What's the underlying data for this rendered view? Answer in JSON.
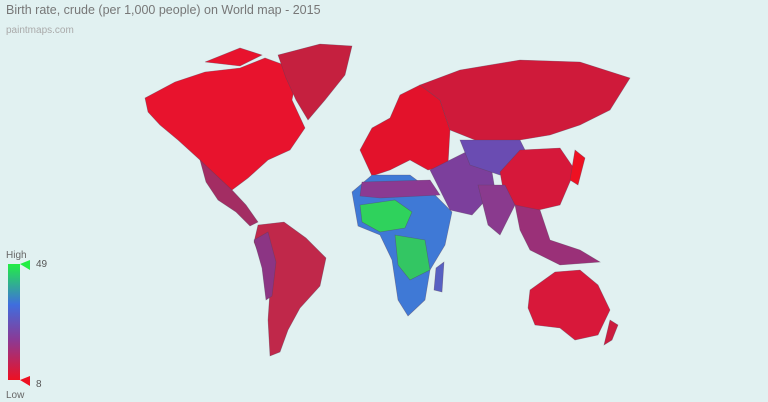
{
  "title": "Birth rate, crude (per 1,000 people) on World map - 2015",
  "source": "paintmaps.com",
  "legend": {
    "high_label": "High",
    "low_label": "Low",
    "max": 49,
    "min": 8
  }
}
